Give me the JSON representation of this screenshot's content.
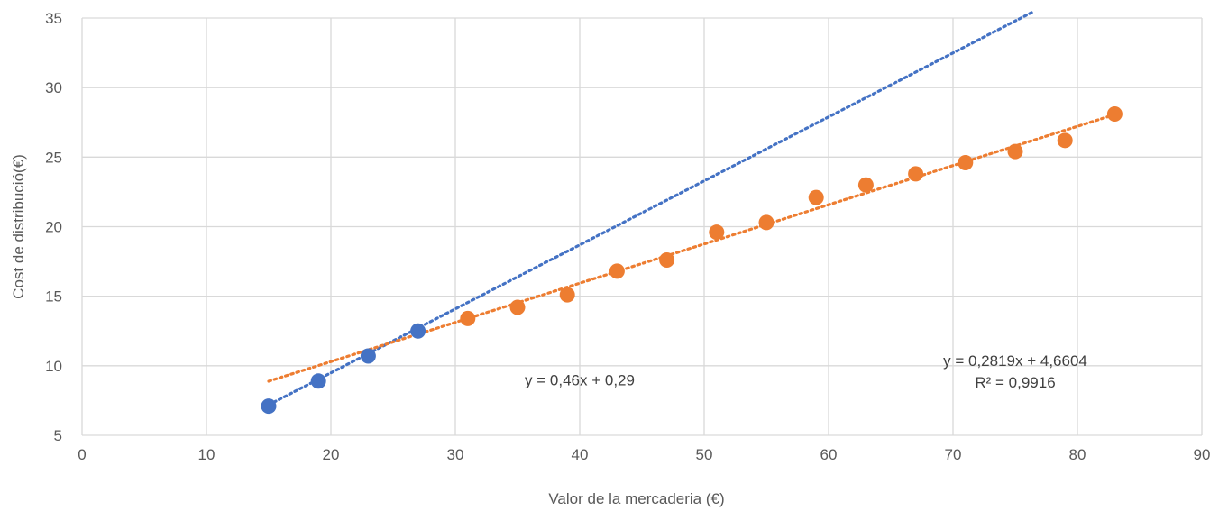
{
  "chart_data": {
    "type": "scatter",
    "title": "",
    "xlabel": "Valor de la mercaderia (€)",
    "ylabel": "Cost de distribució(€)",
    "xlim": [
      0,
      90
    ],
    "ylim": [
      5,
      35
    ],
    "xticks": [
      0,
      10,
      20,
      30,
      40,
      50,
      60,
      70,
      80,
      90
    ],
    "yticks": [
      5,
      10,
      15,
      20,
      25,
      30,
      35
    ],
    "grid": true,
    "legend": "none",
    "series": [
      {
        "color": "#4472c4",
        "points": [
          {
            "x": 15,
            "y": 7.1
          },
          {
            "x": 19,
            "y": 8.9
          },
          {
            "x": 23,
            "y": 10.7
          },
          {
            "x": 27,
            "y": 12.5
          }
        ],
        "trendline": {
          "slope": 0.46,
          "intercept": 0.29,
          "x_range": [
            15,
            76.5
          ]
        }
      },
      {
        "color": "#ed7d31",
        "points": [
          {
            "x": 31,
            "y": 13.4
          },
          {
            "x": 35,
            "y": 14.2
          },
          {
            "x": 39,
            "y": 15.1
          },
          {
            "x": 43,
            "y": 16.8
          },
          {
            "x": 47,
            "y": 17.6
          },
          {
            "x": 51,
            "y": 19.6
          },
          {
            "x": 55,
            "y": 20.3
          },
          {
            "x": 59,
            "y": 22.1
          },
          {
            "x": 63,
            "y": 23.0
          },
          {
            "x": 67,
            "y": 23.8
          },
          {
            "x": 71,
            "y": 24.6
          },
          {
            "x": 75,
            "y": 25.4
          },
          {
            "x": 79,
            "y": 26.2
          },
          {
            "x": 83,
            "y": 28.1
          }
        ],
        "trendline": {
          "slope": 0.2819,
          "intercept": 4.6604,
          "x_range": [
            15,
            83
          ]
        }
      }
    ],
    "annotations": [
      {
        "text": "y = 0,46x + 0,29",
        "at": [
          40,
          8.6
        ]
      },
      {
        "text": "y = 0,2819x + 4,6604",
        "at": [
          75,
          10.0
        ]
      },
      {
        "text": "R² = 0,9916",
        "at": [
          75,
          8.45
        ]
      }
    ]
  }
}
